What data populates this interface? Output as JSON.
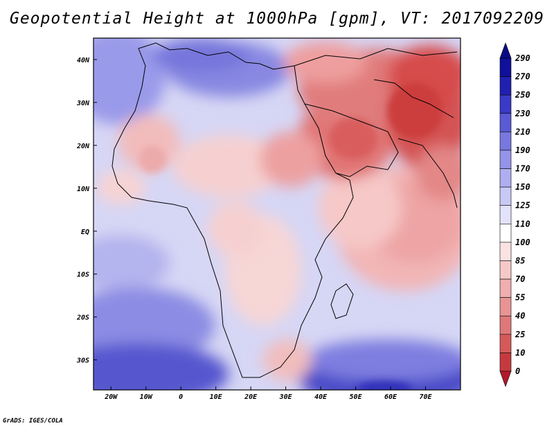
{
  "title": "Geopotential Height at 1000hPa [gpm], VT: 2017092209",
  "footer": "GrADS: IGES/COLA",
  "map": {
    "projection": "latlon",
    "lon_range": [
      -25,
      80
    ],
    "lat_range": [
      -37,
      45
    ],
    "x_ticks": [
      {
        "lon": -20,
        "label": "20W"
      },
      {
        "lon": -10,
        "label": "10W"
      },
      {
        "lon": 0,
        "label": "0"
      },
      {
        "lon": 10,
        "label": "10E"
      },
      {
        "lon": 20,
        "label": "20E"
      },
      {
        "lon": 30,
        "label": "30E"
      },
      {
        "lon": 40,
        "label": "40E"
      },
      {
        "lon": 50,
        "label": "50E"
      },
      {
        "lon": 60,
        "label": "60E"
      },
      {
        "lon": 70,
        "label": "70E"
      }
    ],
    "y_ticks": [
      {
        "lat": 40,
        "label": "40N"
      },
      {
        "lat": 30,
        "label": "30N"
      },
      {
        "lat": 20,
        "label": "20N"
      },
      {
        "lat": 10,
        "label": "10N"
      },
      {
        "lat": 0,
        "label": "EQ"
      },
      {
        "lat": -10,
        "label": "10S"
      },
      {
        "lat": -20,
        "label": "20S"
      },
      {
        "lat": -30,
        "label": "30S"
      }
    ]
  },
  "colorbar": {
    "levels": [
      0,
      10,
      25,
      40,
      55,
      70,
      85,
      100,
      110,
      125,
      150,
      170,
      190,
      210,
      230,
      250,
      270,
      290
    ],
    "labels": [
      "290",
      "270",
      "250",
      "230",
      "210",
      "190",
      "170",
      "150",
      "125",
      "110",
      "100",
      "85",
      "70",
      "55",
      "40",
      "25",
      "10",
      "0"
    ],
    "colors": [
      "#b2182b",
      "#c63a3f",
      "#d45a5a",
      "#df7878",
      "#e89494",
      "#f0aeae",
      "#f6c9c9",
      "#fbe2e2",
      "#ffffff",
      "#e2e2fb",
      "#c9c9f6",
      "#aeaef0",
      "#9494e8",
      "#7878df",
      "#5a5ad4",
      "#3a3ac6",
      "#2020b0",
      "#10109a",
      "#0a0a86"
    ]
  }
}
